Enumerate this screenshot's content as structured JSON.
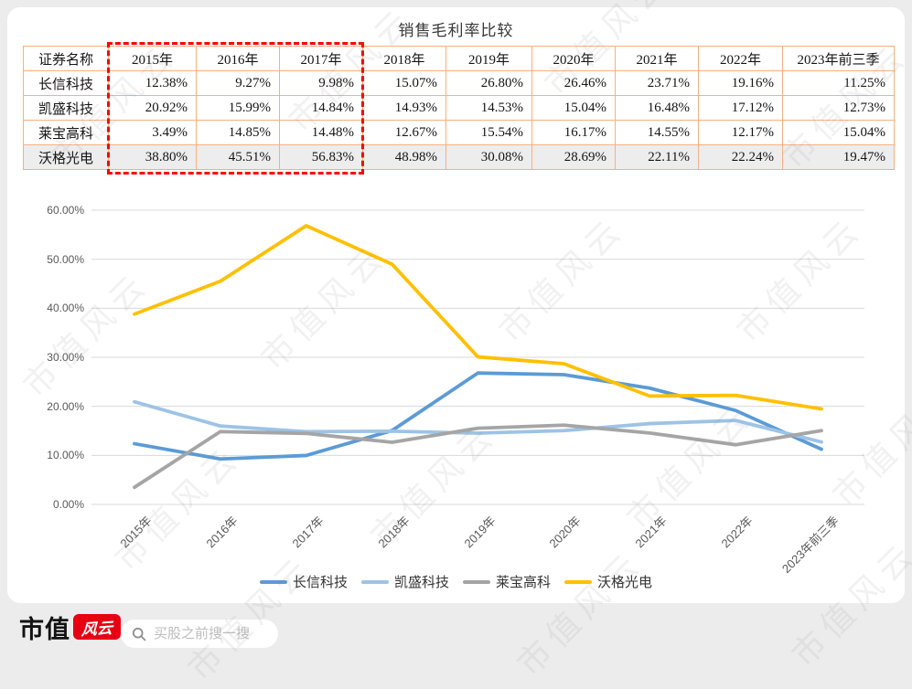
{
  "title": "销售毛利率比较",
  "table": {
    "header": [
      "证券名称",
      "2015年",
      "2016年",
      "2017年",
      "2018年",
      "2019年",
      "2020年",
      "2021年",
      "2022年",
      "2023年前三季"
    ],
    "rows": [
      {
        "name": "长信科技",
        "values": [
          "12.38%",
          "9.27%",
          "9.98%",
          "15.07%",
          "26.80%",
          "26.46%",
          "23.71%",
          "19.16%",
          "11.25%"
        ]
      },
      {
        "name": "凯盛科技",
        "values": [
          "20.92%",
          "15.99%",
          "14.84%",
          "14.93%",
          "14.53%",
          "15.04%",
          "16.48%",
          "17.12%",
          "12.73%"
        ]
      },
      {
        "name": "莱宝高科",
        "values": [
          "3.49%",
          "14.85%",
          "14.48%",
          "12.67%",
          "15.54%",
          "16.17%",
          "14.55%",
          "12.17%",
          "15.04%"
        ]
      },
      {
        "name": "沃格光电",
        "values": [
          "38.80%",
          "45.51%",
          "56.83%",
          "48.98%",
          "30.08%",
          "28.69%",
          "22.11%",
          "22.24%",
          "19.47%"
        ]
      }
    ],
    "highlighted_columns": [
      "2015年",
      "2016年",
      "2017年"
    ]
  },
  "chart_data": {
    "type": "line",
    "title": "销售毛利率比较",
    "categories": [
      "2015年",
      "2016年",
      "2017年",
      "2018年",
      "2019年",
      "2020年",
      "2021年",
      "2022年",
      "2023年前三季"
    ],
    "series": [
      {
        "name": "长信科技",
        "color": "#5B9BD5",
        "values": [
          12.38,
          9.27,
          9.98,
          15.07,
          26.8,
          26.46,
          23.71,
          19.16,
          11.25
        ]
      },
      {
        "name": "凯盛科技",
        "color": "#9DC3E6",
        "values": [
          20.92,
          15.99,
          14.84,
          14.93,
          14.53,
          15.04,
          16.48,
          17.12,
          12.73
        ]
      },
      {
        "name": "莱宝高科",
        "color": "#A5A5A5",
        "values": [
          3.49,
          14.85,
          14.48,
          12.67,
          15.54,
          16.17,
          14.55,
          12.17,
          15.04
        ]
      },
      {
        "name": "沃格光电",
        "color": "#FFC000",
        "values": [
          38.8,
          45.51,
          56.83,
          48.98,
          30.08,
          28.69,
          22.11,
          22.24,
          19.47
        ]
      }
    ],
    "ylim": [
      0,
      60
    ],
    "y_ticks": [
      "0.00%",
      "10.00%",
      "20.00%",
      "30.00%",
      "40.00%",
      "50.00%",
      "60.00%"
    ],
    "grid": true,
    "legend_position": "bottom"
  },
  "watermark": {
    "text": "市值风云"
  },
  "footer": {
    "brand_text": "市值",
    "brand_badge": "风云",
    "search_placeholder": "买股之前搜一搜"
  },
  "colors": {
    "page_bg": "#ECECEC",
    "card_bg": "#FFFFFF",
    "table_border": "#F4B183",
    "table_alt_row": "#EDEDED",
    "highlight_border": "#FF0000",
    "grid_line": "#D9D9D9",
    "tick_text": "#595959",
    "badge_red": "#E60012"
  }
}
